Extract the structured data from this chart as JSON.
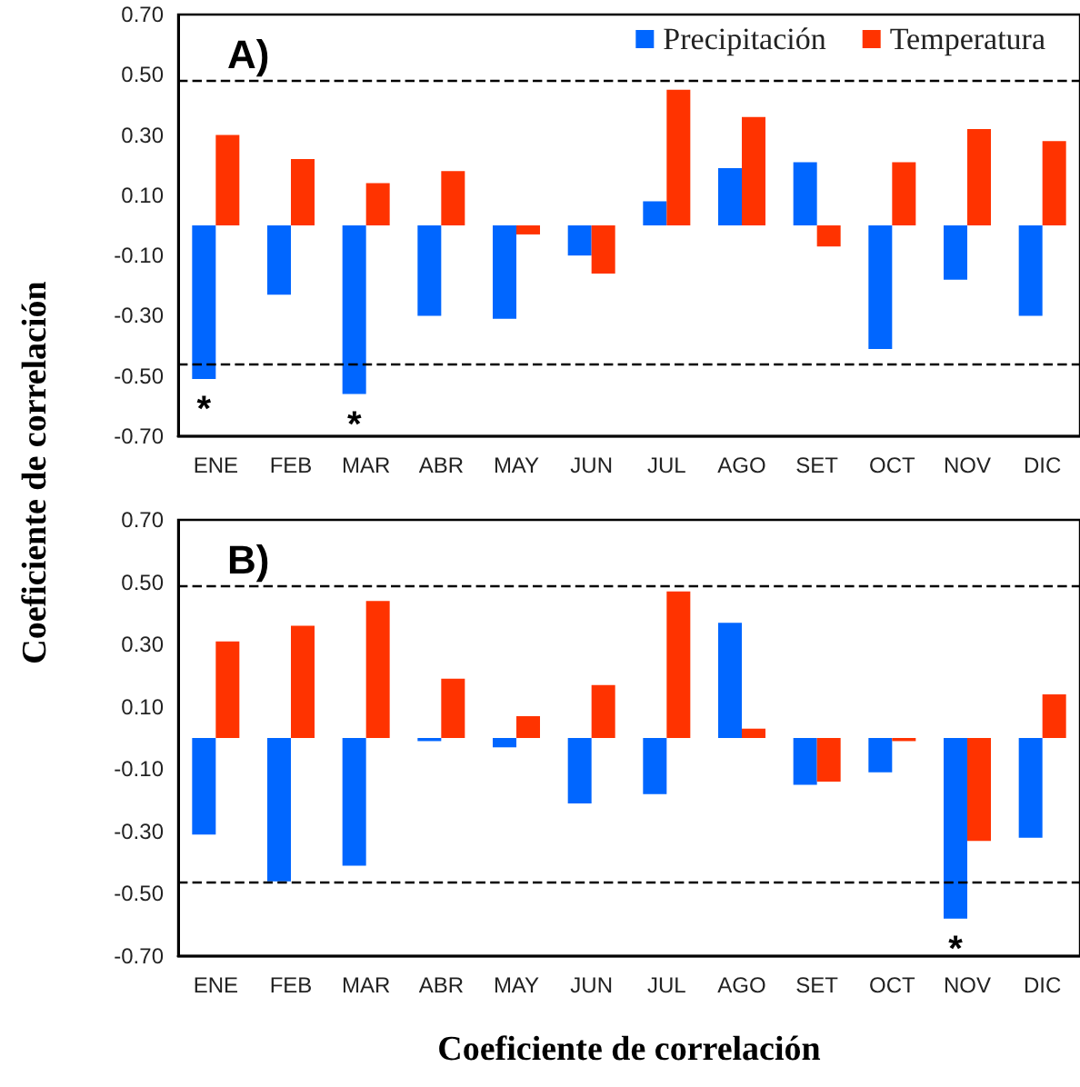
{
  "chart_data": [
    {
      "type": "bar",
      "title": "A)",
      "ylabel": "Coeficiente de correlación",
      "categories": [
        "ENE",
        "FEB",
        "MAR",
        "ABR",
        "MAY",
        "JUN",
        "JUL",
        "AGO",
        "SET",
        "OCT",
        "NOV",
        "DIC"
      ],
      "series": [
        {
          "name": "Precipitación",
          "color": "#0066ff",
          "values": [
            -0.51,
            -0.23,
            -0.56,
            -0.3,
            -0.31,
            -0.1,
            0.08,
            0.19,
            0.21,
            -0.41,
            -0.18,
            -0.3
          ]
        },
        {
          "name": "Temperatura",
          "color": "#ff3300",
          "values": [
            0.3,
            0.22,
            0.14,
            0.18,
            -0.03,
            -0.16,
            0.45,
            0.36,
            -0.07,
            0.21,
            0.32,
            0.28
          ]
        }
      ],
      "ylim": [
        -0.7,
        0.7
      ],
      "yticks": [
        {
          "value": -0.7,
          "label": "-0.70"
        },
        {
          "value": -0.5,
          "label": "-0.50"
        },
        {
          "value": -0.3,
          "label": "-0.30"
        },
        {
          "value": -0.1,
          "label": "-0.10"
        },
        {
          "value": 0.1,
          "label": "0.10"
        },
        {
          "value": 0.3,
          "label": "0.30"
        },
        {
          "value": 0.5,
          "label": "0.50"
        },
        {
          "value": 0.7,
          "label": "0.70"
        }
      ],
      "ref_lines": [
        {
          "axis": "y",
          "value": 0.48,
          "line_style": "dashed"
        },
        {
          "axis": "y",
          "value": -0.46,
          "line_style": "dashed"
        }
      ],
      "annotations": [
        {
          "text": "*",
          "x": "ENE",
          "y": -0.51
        },
        {
          "text": "*",
          "x": "MAR",
          "y": -0.56
        }
      ],
      "legend": "top right"
    },
    {
      "type": "bar",
      "title": "B)",
      "xlabel": "Coeficiente de correlación",
      "categories": [
        "ENE",
        "FEB",
        "MAR",
        "ABR",
        "MAY",
        "JUN",
        "JUL",
        "AGO",
        "SET",
        "OCT",
        "NOV",
        "DIC"
      ],
      "series": [
        {
          "color": "#0066ff",
          "values": [
            -0.31,
            -0.46,
            -0.41,
            -0.01,
            -0.03,
            -0.21,
            -0.18,
            0.37,
            -0.15,
            -0.11,
            -0.58,
            -0.32
          ]
        },
        {
          "color": "#ff3300",
          "values": [
            0.31,
            0.36,
            0.44,
            0.19,
            0.07,
            0.17,
            0.47,
            0.03,
            -0.14,
            -0.01,
            -0.33,
            0.14
          ]
        }
      ],
      "ylim": [
        -0.7,
        0.7
      ],
      "yticks": [
        {
          "value": -0.7,
          "label": "-0.70"
        },
        {
          "value": -0.5,
          "label": "-0.50"
        },
        {
          "value": -0.3,
          "label": "-0.30"
        },
        {
          "value": -0.1,
          "label": "-0.10"
        },
        {
          "value": 0.1,
          "label": "0.10"
        },
        {
          "value": 0.3,
          "label": "0.30"
        },
        {
          "value": 0.5,
          "label": "0.50"
        },
        {
          "value": 0.7,
          "label": "0.70"
        }
      ],
      "ref_lines": [
        {
          "axis": "y",
          "value": 0.49,
          "line_style": "dashed"
        },
        {
          "axis": "y",
          "value": -0.46,
          "line_style": "dashed"
        }
      ],
      "annotations": [
        {
          "text": "*",
          "x": "NOV",
          "y": -0.58
        }
      ]
    }
  ]
}
